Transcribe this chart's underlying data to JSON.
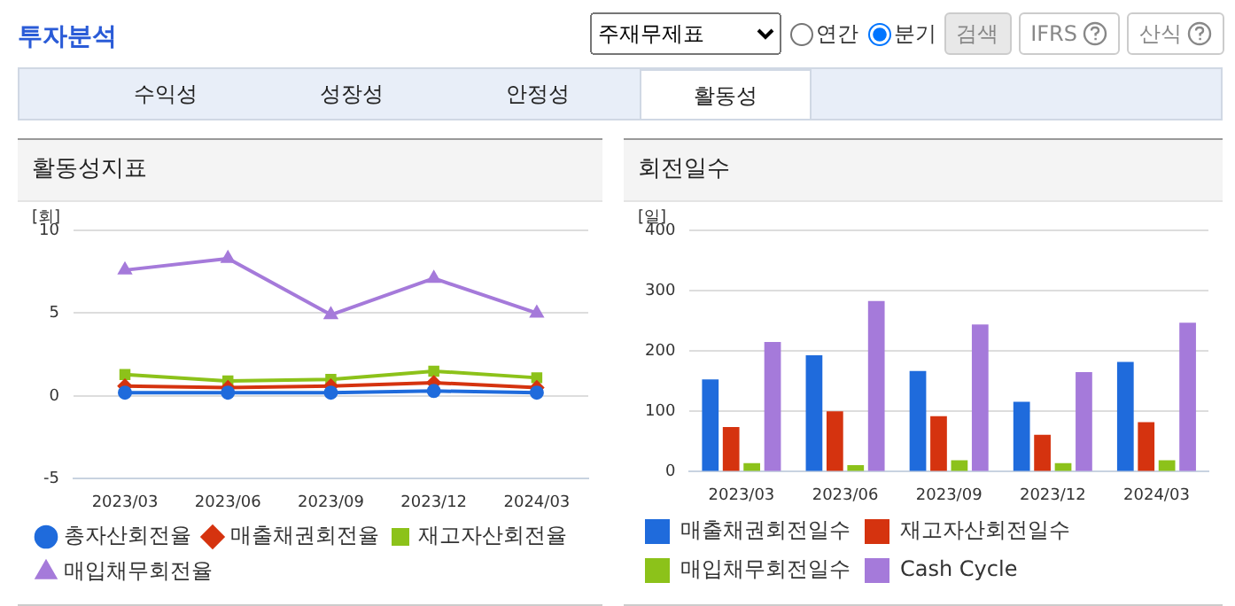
{
  "chart_data": [
    {
      "type": "line",
      "title": "활동성지표",
      "ylabel": "[회]",
      "categories": [
        "2023/03",
        "2023/06",
        "2023/09",
        "2023/12",
        "2024/03"
      ],
      "series": [
        {
          "name": "총자산회전율",
          "color": "#1f6bdc",
          "marker": "circle",
          "values": [
            0.2,
            0.2,
            0.2,
            0.3,
            0.2
          ]
        },
        {
          "name": "매출채권회전율",
          "color": "#d5330f",
          "marker": "diamond",
          "values": [
            0.6,
            0.5,
            0.6,
            0.8,
            0.5
          ]
        },
        {
          "name": "재고자산회전율",
          "color": "#8cc21a",
          "marker": "square",
          "values": [
            1.3,
            0.9,
            1.0,
            1.5,
            1.1
          ]
        },
        {
          "name": "매입채무회전율",
          "color": "#a57ada",
          "marker": "triangle",
          "values": [
            7.6,
            8.3,
            4.9,
            7.1,
            5.0
          ]
        }
      ],
      "ylim": [
        -5,
        10
      ],
      "yticks": [
        -5,
        0,
        5,
        10
      ],
      "grid": "y",
      "legend": "bottom",
      "annotations": [
        "투자분석",
        "주재무제표",
        "연간",
        "분기",
        "검색",
        "IFRS",
        "산식",
        "수익성",
        "성장성",
        "안정성",
        "활동성"
      ]
    },
    {
      "type": "bar",
      "title": "회전일수",
      "ylabel": "[일]",
      "categories": [
        "2023/03",
        "2023/06",
        "2023/09",
        "2023/12",
        "2024/03"
      ],
      "series": [
        {
          "name": "매출채권회전일수",
          "color": "#1f6bdc",
          "values": [
            153,
            193,
            167,
            116,
            182
          ]
        },
        {
          "name": "재고자산회전일수",
          "color": "#d5330f",
          "values": [
            74,
            100,
            92,
            61,
            82
          ]
        },
        {
          "name": "매입채무회전일수",
          "color": "#8cc21a",
          "values": [
            14,
            11,
            19,
            14,
            19
          ]
        },
        {
          "name": "Cash Cycle",
          "color": "#a57ada",
          "values": [
            215,
            283,
            244,
            165,
            247
          ]
        }
      ],
      "ylim": [
        0,
        400
      ],
      "yticks": [
        0,
        100,
        200,
        300,
        400
      ],
      "grid": "y",
      "legend": "bottom"
    }
  ]
}
